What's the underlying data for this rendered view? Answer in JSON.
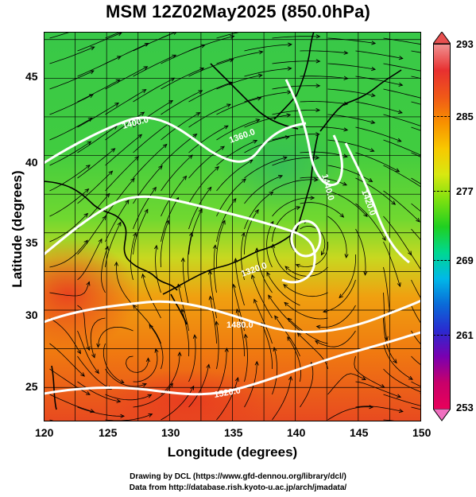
{
  "title": "MSM 12Z02May2025 (850.0hPa)",
  "map": {
    "xlabel": "Longitude (degrees)",
    "ylabel": "Latitude  (degrees)",
    "lon_range": [
      120,
      150
    ],
    "lat_range": [
      22.8,
      48
    ],
    "xticks": [
      "120",
      "125",
      "130",
      "135",
      "140",
      "145",
      "150"
    ],
    "yticks": [
      "25",
      "30",
      "35",
      "40",
      "45"
    ],
    "contour_labels": [
      "1400.0",
      "1360.0",
      "1440.0",
      "1480.0",
      "1520.0",
      "1420.0",
      "1320.0"
    ],
    "field": "temperature",
    "streamlines": "wind"
  },
  "colorbar": {
    "ticks": [
      "293",
      "285",
      "277",
      "269",
      "261",
      "253"
    ],
    "colors": [
      "#e8005a",
      "#c8006a",
      "#7a00b0",
      "#2a2ad0",
      "#0a6ad8",
      "#00b8e8",
      "#00d890",
      "#20d020",
      "#7ae010",
      "#d8e810",
      "#f8c800",
      "#f89000",
      "#f05818",
      "#e83030",
      "#f09090"
    ]
  },
  "credits": {
    "line1": "Drawing by DCL (https://www.gfd-dennou.org/library/dcl/)",
    "line2": "Data from http://database.rish.kyoto-u.ac.jp/arch/jmadata/"
  }
}
